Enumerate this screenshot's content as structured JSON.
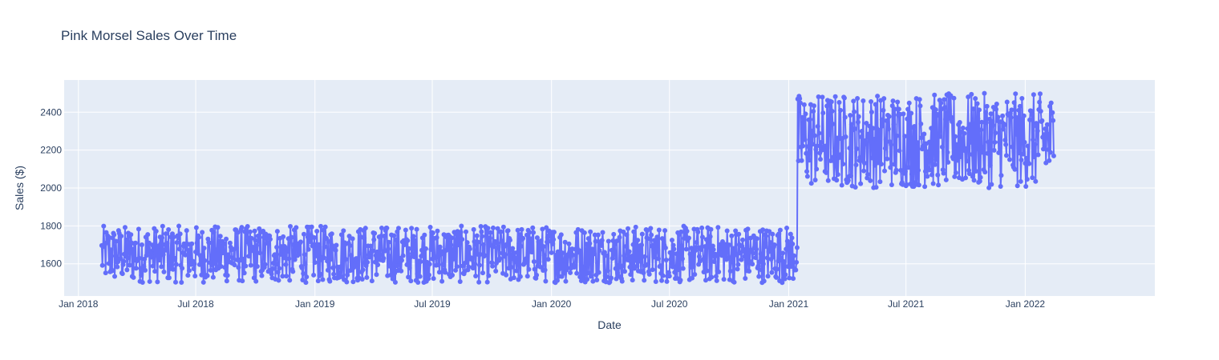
{
  "chart_data": {
    "type": "line",
    "title": "Pink Morsel Sales Over Time",
    "xlabel": "Date",
    "ylabel": "Sales ($)",
    "x_range": [
      "2017-12-10",
      "2022-07-20"
    ],
    "ylim": [
      1430,
      2570
    ],
    "x_tick_labels": [
      "Jan 2018",
      "Jul 2018",
      "Jan 2019",
      "Jul 2019",
      "Jan 2020",
      "Jul 2020",
      "Jan 2021",
      "Jul 2021",
      "Jan 2022"
    ],
    "x_tick_dates": [
      "2018-01-01",
      "2018-07-01",
      "2019-01-01",
      "2019-07-01",
      "2020-01-01",
      "2020-07-01",
      "2021-01-01",
      "2021-07-01",
      "2022-01-01"
    ],
    "y_ticks": [
      1600,
      1800,
      2000,
      2200,
      2400
    ],
    "y_tick_labels": [
      "1600",
      "1800",
      "2000",
      "2200",
      "2400"
    ],
    "grid": true,
    "series": [
      {
        "color": "#636efa",
        "mode": "lines+markers",
        "segments": [
          {
            "start": "2018-02-06",
            "end": "2021-01-14",
            "min": 1500,
            "max": 1800
          },
          {
            "start": "2021-01-15",
            "end": "2022-02-14",
            "min": 2000,
            "max": 2500
          }
        ]
      }
    ]
  },
  "colors": {
    "plot_background": "#e5ecf6",
    "grid": "#ffffff",
    "text": "#2a3f5f",
    "trace": "#636efa"
  }
}
